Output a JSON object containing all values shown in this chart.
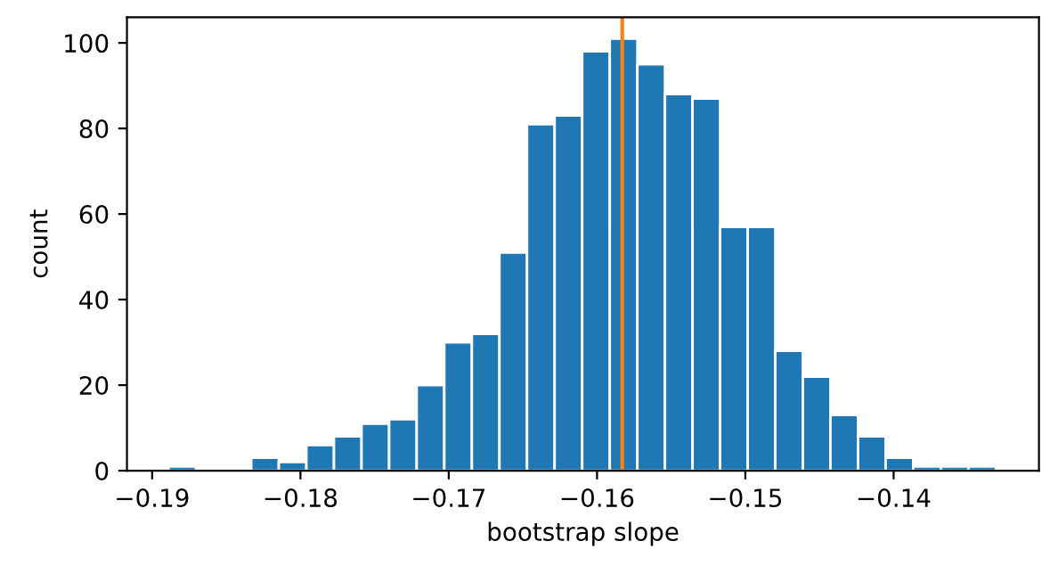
{
  "chart_data": {
    "type": "histogram",
    "xlabel": "bootstrap slope",
    "ylabel": "count",
    "bins": [
      -0.1889,
      -0.18704,
      -0.18518,
      -0.18332,
      -0.18146,
      -0.1796,
      -0.17774,
      -0.17588,
      -0.17402,
      -0.17216,
      -0.1703,
      -0.16844,
      -0.16658,
      -0.16472,
      -0.16286,
      -0.161,
      -0.15914,
      -0.15728,
      -0.15542,
      -0.15356,
      -0.1517,
      -0.14984,
      -0.14798,
      -0.14612,
      -0.14426,
      -0.1424,
      -0.14054,
      -0.13868,
      -0.13682,
      -0.13496,
      -0.1331
    ],
    "values": [
      1,
      0,
      0,
      3,
      2,
      6,
      8,
      11,
      12,
      20,
      30,
      32,
      51,
      81,
      83,
      98,
      101,
      95,
      88,
      87,
      57,
      57,
      28,
      22,
      13,
      8,
      3,
      1,
      1,
      1
    ],
    "color": "#1f77b4",
    "xlim": [
      -0.1917,
      -0.1302
    ],
    "ylim": [
      0,
      106
    ],
    "xticks": [
      {
        "value": -0.19,
        "label": "−0.19"
      },
      {
        "value": -0.18,
        "label": "−0.18"
      },
      {
        "value": -0.17,
        "label": "−0.17"
      },
      {
        "value": -0.16,
        "label": "−0.16"
      },
      {
        "value": -0.15,
        "label": "−0.15"
      },
      {
        "value": -0.14,
        "label": "−0.14"
      }
    ],
    "yticks": [
      0,
      20,
      40,
      60,
      80,
      100
    ],
    "ref_lines": [
      {
        "axis": "x",
        "value": -0.1583,
        "color": "#ff7f0e"
      }
    ],
    "grid": false
  }
}
